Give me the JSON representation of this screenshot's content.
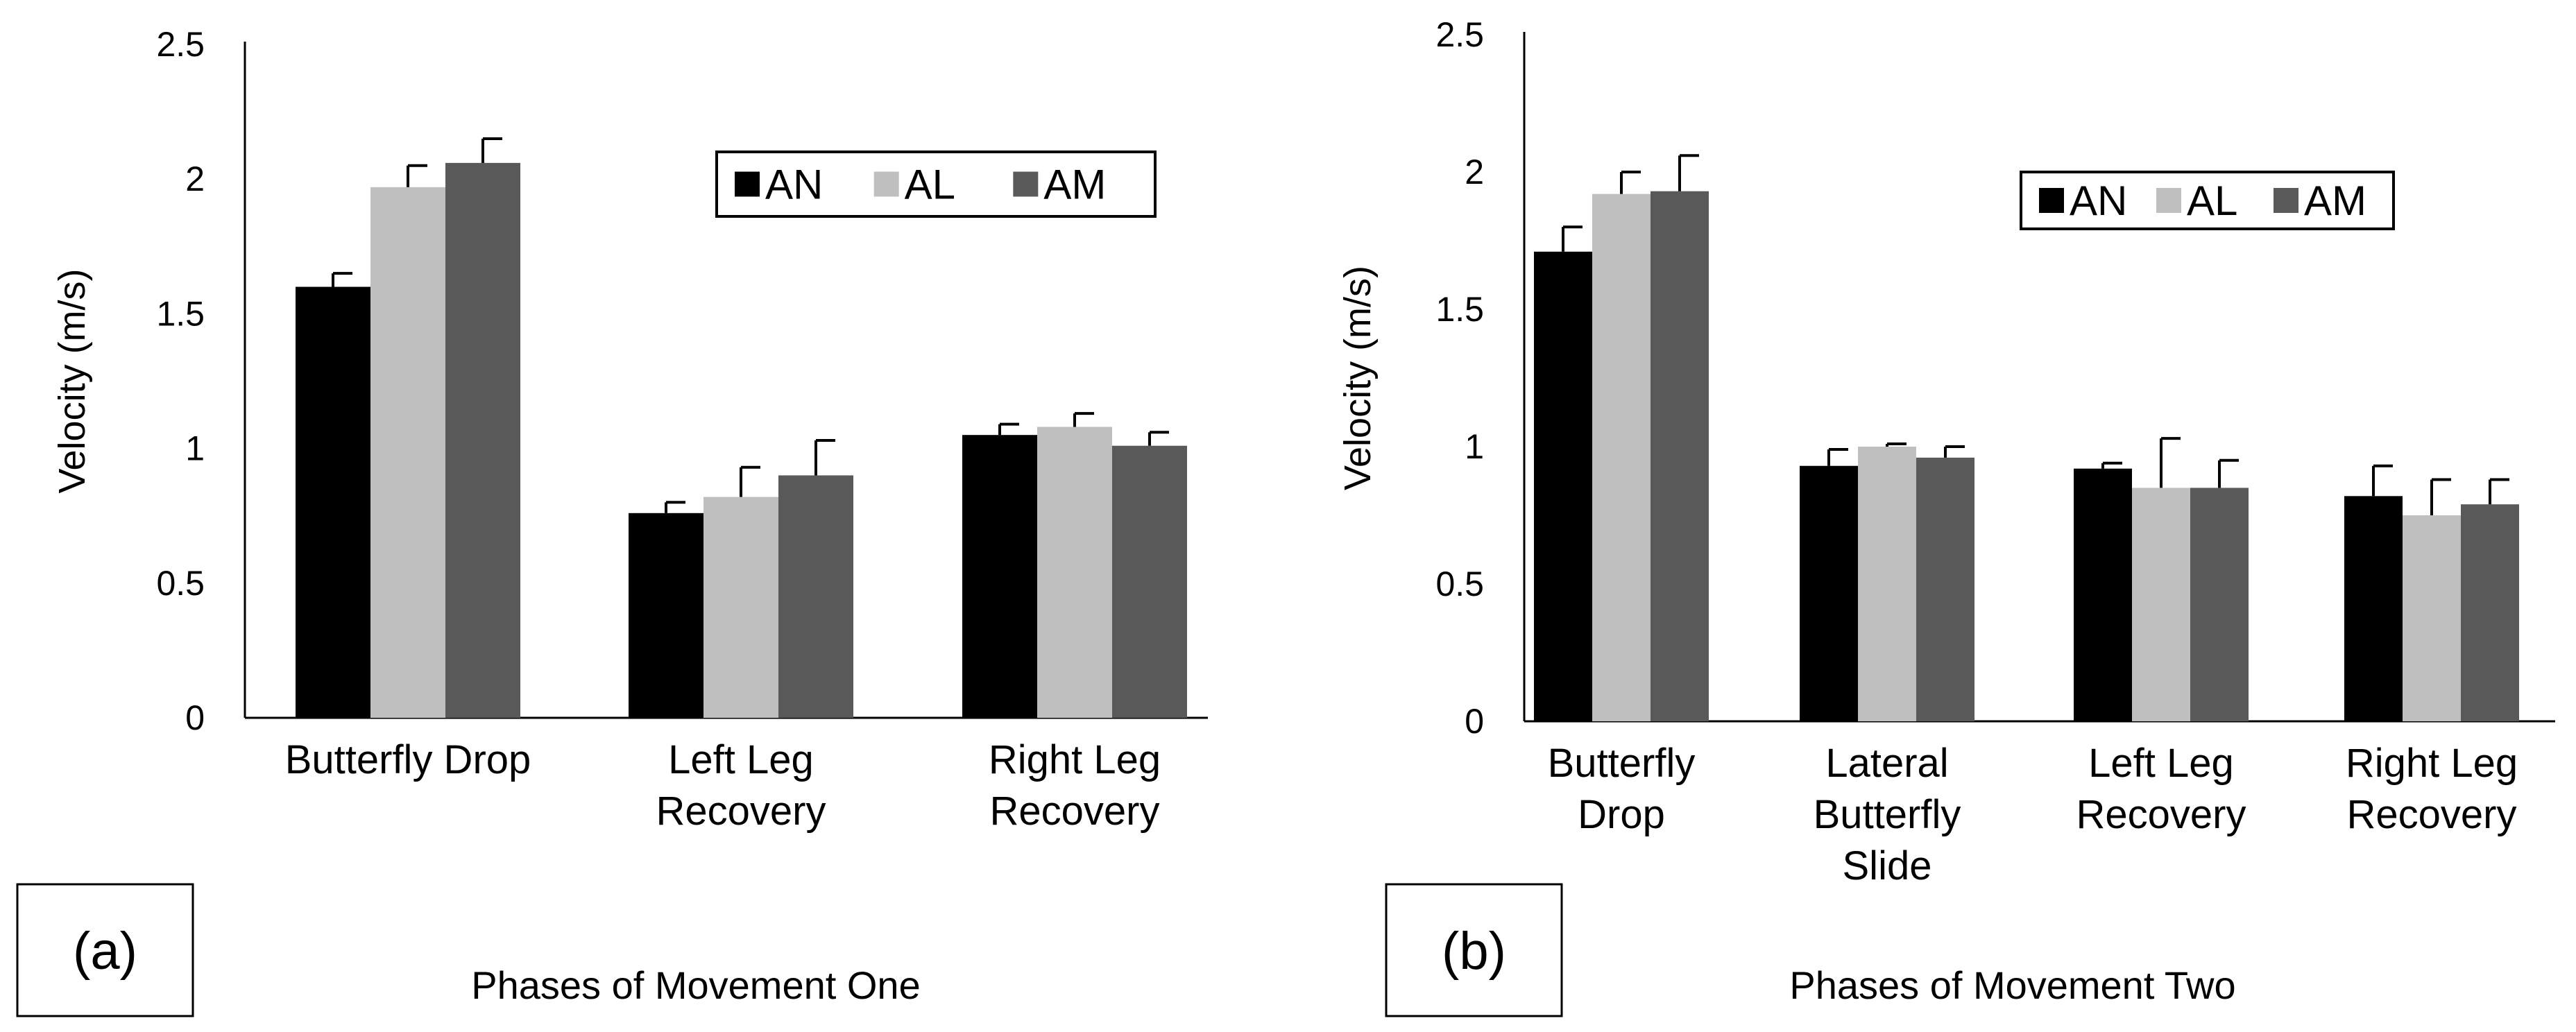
{
  "chart_data": [
    {
      "type": "bar",
      "panel_label": "(a)",
      "xlabel": "Phases of Movement One",
      "ylabel": "Velocity (m/s)",
      "ylim": [
        0,
        2.5
      ],
      "yticks": [
        "0",
        "0.5",
        "1",
        "1.5",
        "2",
        "2.5"
      ],
      "categories": [
        [
          "Butterfly Drop"
        ],
        [
          "Left Leg",
          "Recovery"
        ],
        [
          "Right Leg",
          "Recovery"
        ]
      ],
      "legend": "top-right",
      "series": [
        {
          "name": "AN",
          "color": "#000000",
          "values": [
            1.6,
            0.76,
            1.05
          ],
          "errors": [
            0.05,
            0.04,
            0.04
          ]
        },
        {
          "name": "AL",
          "color": "#bfbfbf",
          "values": [
            1.97,
            0.82,
            1.08
          ],
          "errors": [
            0.08,
            0.11,
            0.05
          ]
        },
        {
          "name": "AM",
          "color": "#595959",
          "values": [
            2.06,
            0.9,
            1.01
          ],
          "errors": [
            0.09,
            0.13,
            0.05
          ]
        }
      ]
    },
    {
      "type": "bar",
      "panel_label": "(b)",
      "xlabel": "Phases of Movement Two",
      "ylabel": "Velocity (m/s)",
      "ylim": [
        0,
        2.5
      ],
      "yticks": [
        "0",
        "0.5",
        "1",
        "1.5",
        "2",
        "2.5"
      ],
      "categories": [
        [
          "Butterfly",
          "Drop"
        ],
        [
          "Lateral",
          "Butterfly",
          "Slide"
        ],
        [
          "Left Leg",
          "Recovery"
        ],
        [
          "Right Leg",
          "Recovery"
        ]
      ],
      "legend": "top-right",
      "series": [
        {
          "name": "AN",
          "color": "#000000",
          "values": [
            1.71,
            0.93,
            0.92,
            0.82
          ],
          "errors": [
            0.09,
            0.06,
            0.02,
            0.11
          ]
        },
        {
          "name": "AL",
          "color": "#bfbfbf",
          "values": [
            1.92,
            1.0,
            0.85,
            0.75
          ],
          "errors": [
            0.08,
            0.01,
            0.18,
            0.13
          ]
        },
        {
          "name": "AM",
          "color": "#595959",
          "values": [
            1.93,
            0.96,
            0.85,
            0.79
          ],
          "errors": [
            0.13,
            0.04,
            0.1,
            0.09
          ]
        }
      ]
    }
  ]
}
